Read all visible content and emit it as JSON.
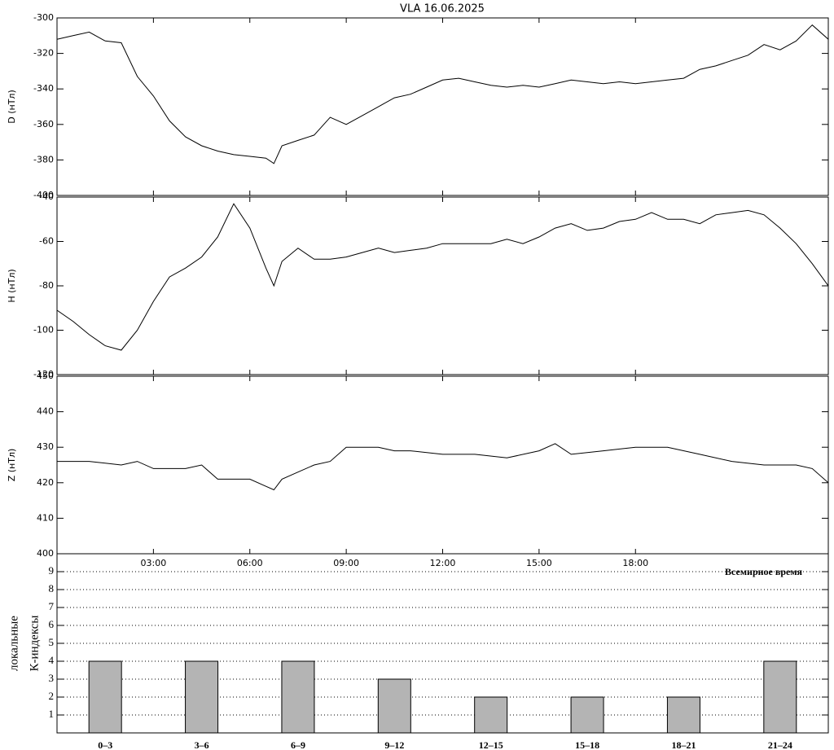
{
  "chart_data": [
    {
      "type": "line",
      "title": "VLA   16.06.2025",
      "y_label": "D (нТл)",
      "x": [
        0,
        0.5,
        1,
        1.5,
        2,
        2.5,
        3,
        3.5,
        4,
        4.5,
        5,
        5.5,
        6,
        6.5,
        6.75,
        7,
        7.5,
        8,
        8.5,
        9,
        9.5,
        10,
        10.5,
        11,
        11.5,
        12,
        12.5,
        13,
        13.5,
        14,
        14.5,
        15,
        15.5,
        16,
        16.5,
        17,
        17.5,
        18,
        18.5,
        19,
        19.5,
        20,
        20.5,
        21,
        21.5,
        22,
        22.5,
        23,
        23.5,
        24
      ],
      "series": [
        {
          "name": "D",
          "color": "#000000",
          "values": [
            -312,
            -310,
            -308,
            -313,
            -314,
            -333,
            -344,
            -358,
            -367,
            -372,
            -375,
            -377,
            -378,
            -379,
            -382,
            -372,
            -369,
            -366,
            -356,
            -360,
            -355,
            -350,
            -345,
            -343,
            -339,
            -335,
            -334,
            -336,
            -338,
            -339,
            -338,
            -339,
            -337,
            -335,
            -336,
            -337,
            -336,
            -337,
            -336,
            -335,
            -334,
            -329,
            -327,
            -324,
            -321,
            -315,
            -318,
            -313,
            -304,
            -312
          ]
        }
      ],
      "xlim": [
        0,
        24
      ],
      "ylim": [
        -400,
        -300
      ],
      "yticks": [
        -400,
        -380,
        -360,
        -340,
        -320,
        -300
      ]
    },
    {
      "type": "line",
      "y_label": "H (нТл)",
      "x": [
        0,
        0.5,
        1,
        1.5,
        2,
        2.5,
        3,
        3.5,
        4,
        4.5,
        5,
        5.5,
        6,
        6.5,
        6.75,
        7,
        7.5,
        8,
        8.5,
        9,
        9.5,
        10,
        10.5,
        11,
        11.5,
        12,
        12.5,
        13,
        13.5,
        14,
        14.5,
        15,
        15.5,
        16,
        16.5,
        17,
        17.5,
        18,
        18.5,
        19,
        19.5,
        20,
        20.5,
        21,
        21.5,
        22,
        22.5,
        23,
        23.5,
        24
      ],
      "series": [
        {
          "name": "H",
          "color": "#000000",
          "values": [
            -91,
            -96,
            -102,
            -107,
            -109,
            -100,
            -87,
            -76,
            -72,
            -67,
            -58,
            -43,
            -54,
            -72,
            -80,
            -69,
            -63,
            -68,
            -68,
            -67,
            -65,
            -63,
            -65,
            -64,
            -63,
            -61,
            -61,
            -61,
            -61,
            -59,
            -61,
            -58,
            -54,
            -52,
            -55,
            -54,
            -51,
            -50,
            -47,
            -50,
            -50,
            -52,
            -48,
            -47,
            -46,
            -48,
            -54,
            -61,
            -70,
            -80
          ]
        }
      ],
      "xlim": [
        0,
        24
      ],
      "ylim": [
        -120,
        -40
      ],
      "yticks": [
        -120,
        -100,
        -80,
        -60,
        -40
      ]
    },
    {
      "type": "line",
      "y_label": "Z (нТл)",
      "x_label": "Всемирное время",
      "x": [
        0,
        1,
        2,
        2.5,
        3,
        3.5,
        4,
        4.5,
        5,
        5.5,
        6,
        6.5,
        6.75,
        7,
        7.5,
        8,
        8.5,
        9,
        9.5,
        10,
        10.5,
        11,
        12,
        13,
        14,
        15,
        15.5,
        16,
        17,
        18,
        19,
        20,
        21,
        22,
        23,
        23.5,
        24
      ],
      "series": [
        {
          "name": "Z",
          "color": "#000000",
          "values": [
            426,
            426,
            425,
            426,
            424,
            424,
            424,
            425,
            421,
            421,
            421,
            419,
            418,
            421,
            423,
            425,
            426,
            430,
            430,
            430,
            429,
            429,
            428,
            428,
            427,
            429,
            431,
            428,
            429,
            430,
            430,
            428,
            426,
            425,
            425,
            424,
            420
          ]
        }
      ],
      "xlim": [
        0,
        24
      ],
      "ylim": [
        400,
        450
      ],
      "yticks": [
        400,
        410,
        420,
        430,
        440,
        450
      ],
      "xticks": [
        {
          "value": 3,
          "label": "03:00"
        },
        {
          "value": 6,
          "label": "06:00"
        },
        {
          "value": 9,
          "label": "09:00"
        },
        {
          "value": 12,
          "label": "12:00"
        },
        {
          "value": 15,
          "label": "15:00"
        },
        {
          "value": 18,
          "label": "18:00"
        }
      ]
    },
    {
      "type": "bar",
      "y_label": [
        "локальные",
        "К-индексы"
      ],
      "categories": [
        "0–3",
        "3–6",
        "6–9",
        "9–12",
        "12–15",
        "15–18",
        "18–21",
        "21–24"
      ],
      "values": [
        4,
        4,
        4,
        3,
        2,
        2,
        2,
        4
      ],
      "color": "#b4b4b4",
      "ylim": [
        0,
        10
      ],
      "yticks": [
        1,
        2,
        3,
        4,
        5,
        6,
        7,
        8,
        9
      ],
      "grid": true
    }
  ]
}
